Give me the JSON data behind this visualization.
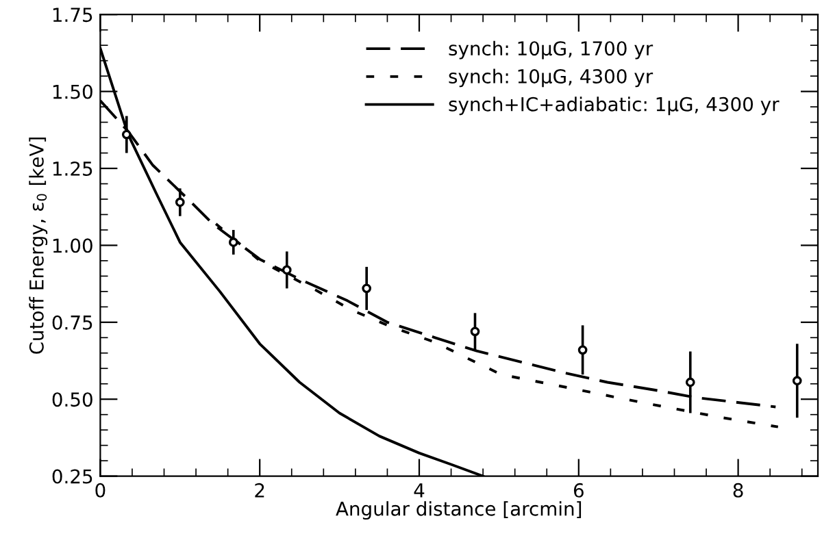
{
  "chart_data": {
    "type": "line",
    "xlabel": "Angular distance [arcmin]",
    "ylabel": "Cutoff Energy, ε$_{0}$ [keV]",
    "xlim": [
      0,
      9
    ],
    "ylim": [
      0.25,
      1.75
    ],
    "xticks": [
      0,
      2,
      4,
      6,
      8
    ],
    "yticks": [
      {
        "value": 0.25,
        "label": "0.25"
      },
      {
        "value": 0.5,
        "label": "0.50"
      },
      {
        "value": 0.75,
        "label": "0.75"
      },
      {
        "value": 1.0,
        "label": "1.00"
      },
      {
        "value": 1.25,
        "label": "1.25"
      },
      {
        "value": 1.5,
        "label": "1.50"
      },
      {
        "value": 1.75,
        "label": "1.75"
      }
    ],
    "grid": false,
    "legend": "top right",
    "marker": "none",
    "series": [
      {
        "name": "synch: 10μG, 1700 yr",
        "color": "#000000",
        "line_style": "dashed",
        "x": [
          0,
          0.35,
          0.66,
          1.12,
          1.41,
          2.0,
          2.5,
          3.1,
          3.6,
          4.2,
          4.72,
          5.83,
          6.36,
          6.95,
          7.48,
          8.47
        ],
        "values": [
          1.47,
          1.37,
          1.26,
          1.145,
          1.07,
          0.955,
          0.89,
          0.82,
          0.75,
          0.7,
          0.657,
          0.585,
          0.555,
          0.53,
          0.505,
          0.475
        ]
      },
      {
        "name": "synch: 10μG, 4300 yr",
        "color": "#000000",
        "line_style": "dotted",
        "x": [
          1.45,
          2.0,
          2.7,
          3.15,
          3.65,
          4.2,
          4.55,
          5.03,
          5.72,
          6.78,
          7.8,
          8.5
        ],
        "values": [
          1.07,
          0.95,
          0.855,
          0.79,
          0.735,
          0.685,
          0.64,
          0.58,
          0.545,
          0.49,
          0.44,
          0.41
        ]
      },
      {
        "name": "synch+IC+adiabatic: 1μG, 4300 yr",
        "color": "#000000",
        "line_style": "solid",
        "x": [
          0,
          0.35,
          0.7,
          1.0,
          1.5,
          2.0,
          2.5,
          3.0,
          3.5,
          4.0,
          4.4,
          4.8
        ],
        "values": [
          1.64,
          1.36,
          1.17,
          1.01,
          0.85,
          0.68,
          0.555,
          0.455,
          0.38,
          0.325,
          0.288,
          0.25
        ]
      },
      {
        "type": "scatter",
        "color": "#000000",
        "marker": "circle",
        "x": [
          0.33,
          1.0,
          1.67,
          2.34,
          3.34,
          4.7,
          6.05,
          7.4,
          8.74
        ],
        "values": [
          1.36,
          1.14,
          1.01,
          0.92,
          0.86,
          0.72,
          0.66,
          0.555,
          0.56
        ],
        "errors": [
          0.06,
          0.045,
          0.04,
          0.06,
          0.07,
          0.06,
          0.08,
          0.1,
          0.12
        ]
      }
    ]
  }
}
